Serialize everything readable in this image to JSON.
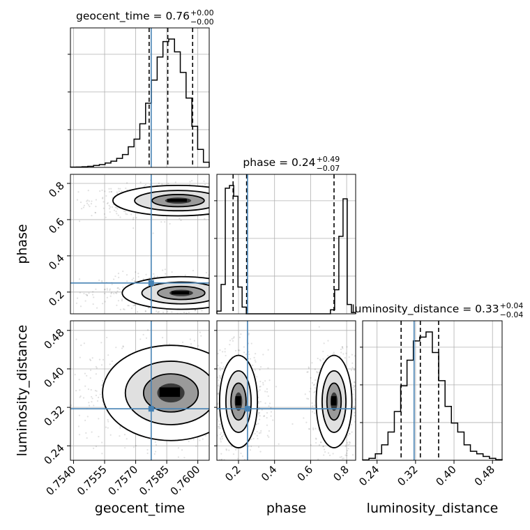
{
  "chart_data": {
    "type": "corner",
    "truth_color": "#4682b4",
    "parameters": [
      {
        "name": "geocent_time",
        "title": "geocent_time = 0.76",
        "title_value": "0.76",
        "title_plus": "+0.00",
        "title_minus": "−0.00",
        "range": [
          0.75385,
          0.76055
        ],
        "ticks": [
          0.754,
          0.7555,
          0.757,
          0.7585,
          0.76
        ],
        "tick_labels": [
          "0.7540",
          "0.7555",
          "0.7570",
          "0.7585",
          "0.7600"
        ],
        "truth": 0.75775,
        "quantiles": [
          0.75765,
          0.75855,
          0.75975
        ],
        "hist_counts": [
          0.2,
          0.3,
          0.5,
          0.8,
          1.5,
          2.2,
          3.4,
          4.8,
          7,
          10,
          16,
          22,
          34,
          50,
          68,
          86,
          98,
          100,
          90,
          74,
          54,
          32,
          14,
          4
        ]
      },
      {
        "name": "phase",
        "title": "phase = 0.24",
        "title_value": "0.24",
        "title_plus": "+0.49",
        "title_minus": "−0.07",
        "range": [
          0.08,
          0.85
        ],
        "ticks": [
          0.2,
          0.4,
          0.6,
          0.8
        ],
        "tick_labels": [
          "0.2",
          "0.4",
          "0.6",
          "0.8"
        ],
        "truth": 0.25,
        "quantiles": [
          0.17,
          0.245,
          0.73
        ],
        "hist_counts": [
          2,
          22,
          94,
          96,
          88,
          20,
          5,
          0,
          0,
          0,
          0,
          0,
          0,
          0,
          0,
          0,
          0,
          0,
          0,
          0,
          0,
          0,
          0,
          0,
          0,
          0,
          0,
          3,
          18,
          58,
          86,
          7,
          1
        ]
      },
      {
        "name": "luminosity_distance",
        "title": "luminosity_distance = 0.33",
        "title_value": "0.33",
        "title_plus": "+0.04",
        "title_minus": "−0.04",
        "range": [
          0.21,
          0.5
        ],
        "ticks": [
          0.24,
          0.32,
          0.4,
          0.48
        ],
        "tick_labels": [
          "0.24",
          "0.32",
          "0.40",
          "0.48"
        ],
        "truth": 0.317,
        "quantiles": [
          0.29,
          0.33,
          0.368
        ],
        "hist_counts": [
          0.3,
          1.5,
          5,
          12,
          22,
          38,
          58,
          78,
          93,
          96,
          100,
          84,
          62,
          42,
          29,
          22,
          12,
          7,
          5,
          3,
          1.5,
          0.5
        ]
      }
    ],
    "blobs_2d": {
      "1,0": [
        {
          "cx": 0.75905,
          "cy": 0.705,
          "sx": 0.00105,
          "sy": 0.028,
          "w": 0.8
        },
        {
          "cx": 0.7592,
          "cy": 0.195,
          "sx": 0.00095,
          "sy": 0.03,
          "w": 1.0
        }
      ],
      "2,0": [
        {
          "cx": 0.7587,
          "cy": 0.35,
          "sx": 0.0011,
          "sy": 0.033,
          "w": 1.0
        }
      ],
      "2,1": [
        {
          "cx": 0.2,
          "cy": 0.332,
          "sx": 0.035,
          "sy": 0.032,
          "w": 1.0
        },
        {
          "cx": 0.73,
          "cy": 0.332,
          "sx": 0.033,
          "sy": 0.032,
          "w": 0.75
        }
      ]
    }
  }
}
